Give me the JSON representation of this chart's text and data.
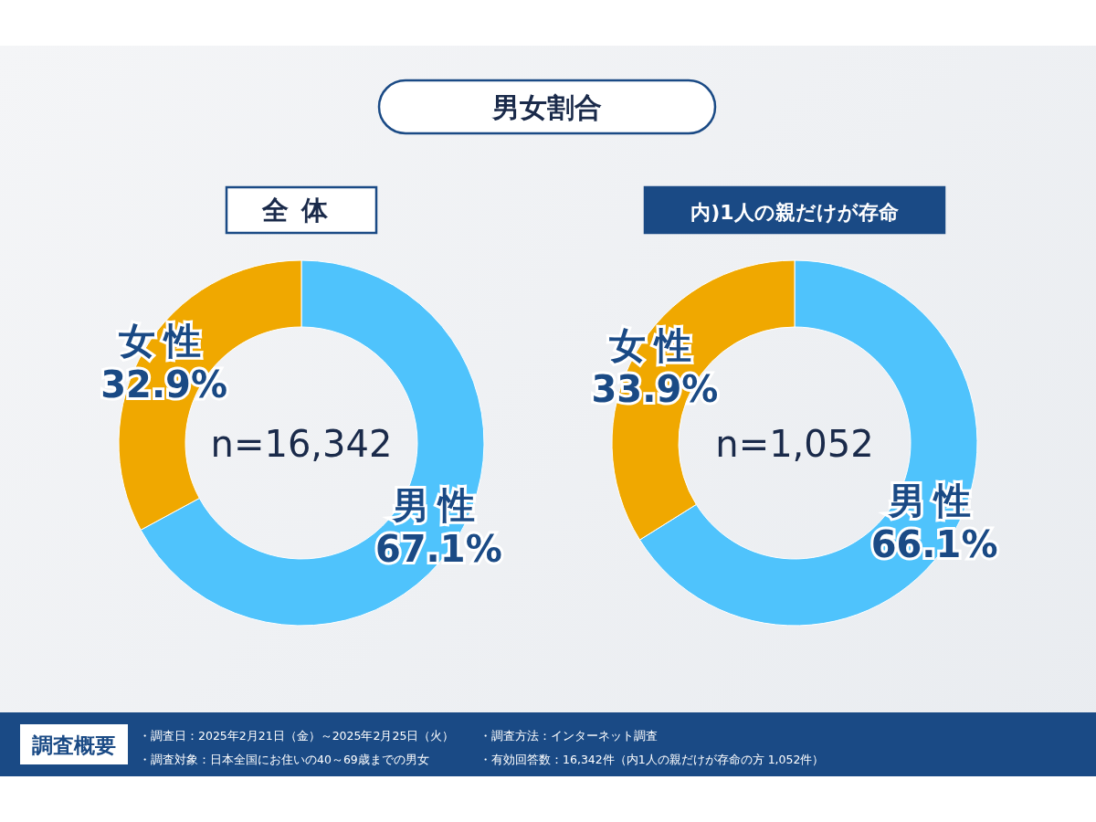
{
  "chart_data": [
    {
      "type": "other",
      "title": "男女割合",
      "annotations": [
        "調査概要",
        "・調査日：2025年2月21日（金）～2025年2月25日（火）",
        "・調査対象：日本全国にお住いの40～69歳までの男女",
        "・調査方法：インターネット調査",
        "・有効回答数：16,342件（内1人の親だけが存命の方 1,052件）"
      ]
    },
    {
      "type": "donut",
      "title": "全体",
      "categories": [
        "男性",
        "女性"
      ],
      "values": [
        67.1,
        32.9
      ],
      "colors": [
        "#4fc3fc",
        "#f0a800"
      ],
      "value_labels": [
        "67.1%",
        "32.9%"
      ],
      "annotations": [
        "n=16,342"
      ]
    },
    {
      "type": "donut",
      "title": "内)1人の親だけが存命",
      "categories": [
        "男性",
        "女性"
      ],
      "values": [
        66.1,
        33.9
      ],
      "colors": [
        "#4fc3fc",
        "#f0a800"
      ],
      "value_labels": [
        "66.1%",
        "33.9%"
      ],
      "annotations": [
        "n=1,052"
      ]
    }
  ]
}
